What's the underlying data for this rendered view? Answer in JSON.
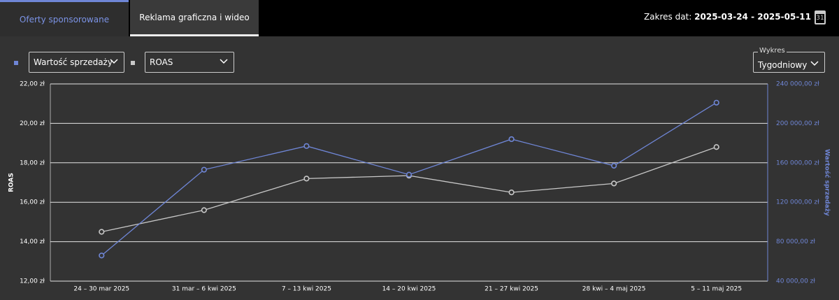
{
  "tabs": [
    "Oferty sponsorowane",
    "Reklama graficzna i wideo"
  ],
  "date_range": {
    "label": "Zakres dat:",
    "value": "2025-03-24 - 2025-05-11",
    "icon_text": "31"
  },
  "view_select": {
    "label": "Wykres",
    "value": "Tygodniowy"
  },
  "chart_data": {
    "type": "line",
    "categories": [
      "24 – 30 mar 2025",
      "31 mar – 6 kwi 2025",
      "7 – 13 kwi 2025",
      "14 – 20 kwi 2025",
      "21 – 27 kwi 2025",
      "28 kwi – 4 maj 2025",
      "5 – 11 maj 2025"
    ],
    "series": [
      {
        "name": "Wartość sprzedaży",
        "color": "#6f86d6",
        "axis": "y2",
        "values": [
          66000,
          153000,
          177000,
          148000,
          184000,
          157000,
          221000
        ]
      },
      {
        "name": "ROAS",
        "color": "#c8c8c8",
        "values": [
          14.5,
          15.6,
          17.2,
          17.35,
          16.5,
          16.95,
          18.8
        ]
      }
    ],
    "ylabel": "ROAS",
    "y2label": "Wartość sprzedaży",
    "ylim": [
      12,
      22
    ],
    "yticks": [
      {
        "value": 12,
        "label": "12,00 zł"
      },
      {
        "value": 14,
        "label": "14,00 zł"
      },
      {
        "value": 16,
        "label": "16,00 zł"
      },
      {
        "value": 18,
        "label": "18,00 zł"
      },
      {
        "value": 20,
        "label": "20,00 zł"
      },
      {
        "value": 22,
        "label": "22,00 zł"
      }
    ],
    "y2lim": [
      40000,
      240000
    ],
    "y2ticks": [
      {
        "value": 40000,
        "label": "40 000,00 zł"
      },
      {
        "value": 80000,
        "label": "80 000,00 zł"
      },
      {
        "value": 120000,
        "label": "120 000,00 zł"
      },
      {
        "value": 160000,
        "label": "160 000,00 zł"
      },
      {
        "value": 200000,
        "label": "200 000,00 zł"
      },
      {
        "value": 240000,
        "label": "240 000,00 zł"
      }
    ],
    "grid": true
  }
}
